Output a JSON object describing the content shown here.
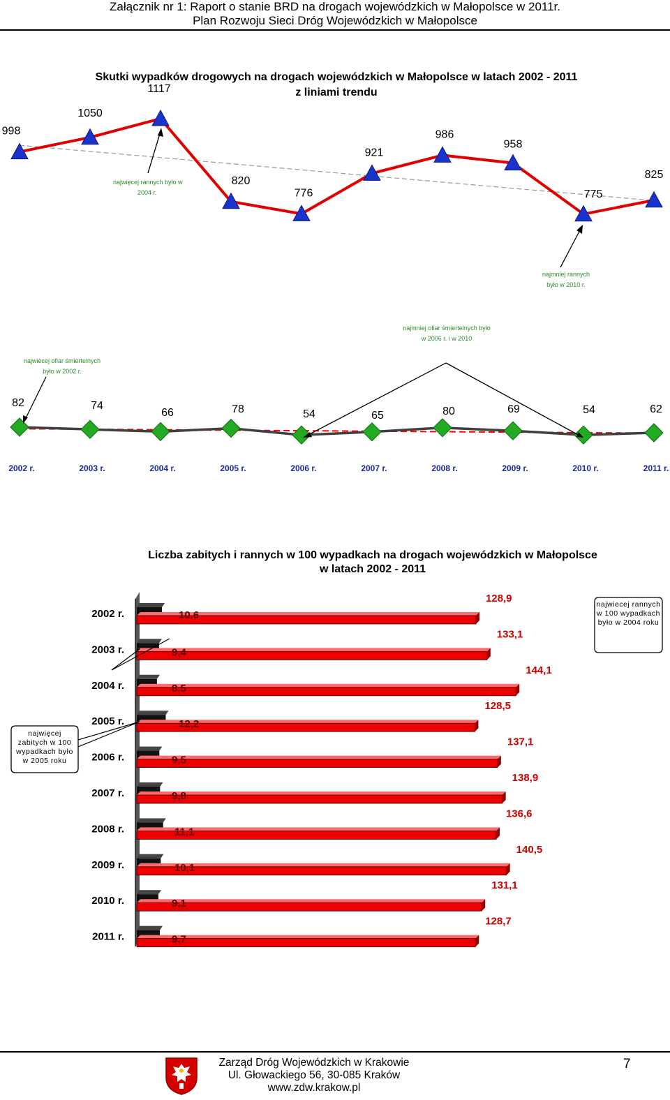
{
  "header": {
    "line1": "Załącznik nr 1: Raport o stanie BRD na drogach wojewódzkich w Małopolsce w 2011r.",
    "line2": "Plan Rozwoju Sieci Dróg Wojewódzkich w Małopolsce"
  },
  "colors": {
    "injured_line": "#e00000",
    "injured_marker": "#1a33cc",
    "fatal_line": "#404040",
    "fatal_marker": "#22aa22",
    "fatal_trend": "#ff0000",
    "bar_red": "#ee0000",
    "bar_black": "#111111",
    "annotation_green": "#2a8c2a"
  },
  "chart_data": [
    {
      "type": "line",
      "title": "Skutki wypadków drogowych na drogach wojewódzkich w Małopolsce w latach 2002 - 2011",
      "subtitle": "z liniami trendu",
      "categories": [
        "2002 r.",
        "2003 r.",
        "2004 r.",
        "2005 r.",
        "2006 r.",
        "2007 r.",
        "2008 r.",
        "2009 r.",
        "2010 r.",
        "2011 r."
      ],
      "series": [
        {
          "values": [
            998,
            1050,
            1117,
            820,
            776,
            921,
            986,
            958,
            775,
            825
          ],
          "labels": [
            "998",
            "1050",
            "1117",
            "820",
            "776",
            "921",
            "986",
            "958",
            "775",
            "825"
          ],
          "trendline": true
        },
        {
          "values": [
            82,
            74,
            66,
            78,
            54,
            65,
            80,
            69,
            54,
            62
          ],
          "labels": [
            "82",
            "74",
            "66",
            "78",
            "54",
            "65",
            "80",
            "69",
            "54",
            "62"
          ],
          "trendline": true
        }
      ],
      "annotations": [
        {
          "line1": "najwięcej rannych było    w",
          "line2": "2004 r."
        },
        {
          "line1": "najmniej rannych",
          "line2": "było w 2010 r."
        },
        {
          "line1": "najmniej ofiar śmiertelnych było",
          "line2": "w 2006 r. i w 2010"
        },
        {
          "line1": "najwiecej ofiar śmiertelnych",
          "line2": "było w 2002 r."
        }
      ],
      "grid": false,
      "legend": "none"
    },
    {
      "type": "bar",
      "orientation": "horizontal",
      "title": "Liczba zabitych i rannych w 100 wypadkach  na drogach wojewódzkich w Małopolsce",
      "subtitle": "w latach 2002 - 2011",
      "categories": [
        "2002 r.",
        "2003 r.",
        "2004 r.",
        "2005 r.",
        "2006 r.",
        "2007 r.",
        "2008 r.",
        "2009 r.",
        "2010 r.",
        "2011 r."
      ],
      "series": [
        {
          "values": [
            10.6,
            9.4,
            8.5,
            12.2,
            9.5,
            9.8,
            11.1,
            10.1,
            9.1,
            9.7
          ],
          "labels": [
            "10,6",
            "9,4",
            "8,5",
            "12,2",
            "9,5",
            "9,8",
            "11,1",
            "10,1",
            "9,1",
            "9,7"
          ]
        },
        {
          "values": [
            128.9,
            133.1,
            144.1,
            128.5,
            137.1,
            138.9,
            136.6,
            140.5,
            131.1,
            128.7
          ],
          "labels": [
            "128,9",
            "133,1",
            "144,1",
            "128,5",
            "137,1",
            "138,9",
            "136,6",
            "140,5",
            "131,1",
            "128,7"
          ]
        }
      ],
      "annotations": [
        {
          "text": "najwiecej rannych w 100 wypadkach było w 2004 roku"
        },
        {
          "text": "najwięcej zabitych w 100 wypadkach było w 2005 roku"
        }
      ],
      "grid": false,
      "legend": "none"
    }
  ],
  "footer": {
    "line1": "Zarząd Dróg Wojewódzkich w Krakowie",
    "line2": "Ul. Głowackiego 56, 30-085 Kraków",
    "line3": "www.zdw.krakow.pl",
    "page_number": "7",
    "crest": "malopolska-coat-of-arms-icon"
  }
}
